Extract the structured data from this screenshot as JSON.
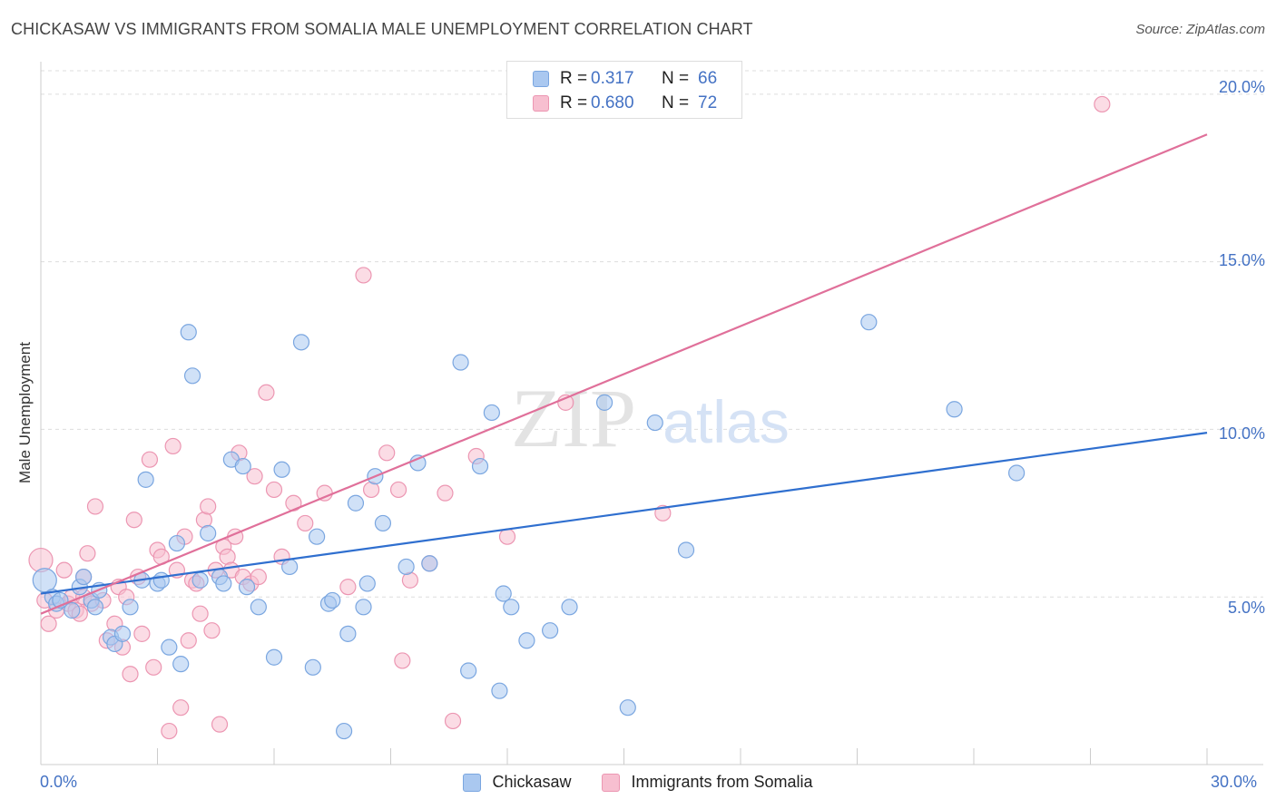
{
  "title": "CHICKASAW VS IMMIGRANTS FROM SOMALIA MALE UNEMPLOYMENT CORRELATION CHART",
  "source": "Source: ZipAtlas.com",
  "watermark": {
    "zip": "ZIP",
    "atlas": "atlas"
  },
  "legend": {
    "rows": [
      {
        "r_label": "R =",
        "r_value": "0.317",
        "n_label": "N =",
        "n_value": "66"
      },
      {
        "r_label": "R =",
        "r_value": "0.680",
        "n_label": "N =",
        "n_value": "72"
      }
    ]
  },
  "bottom_legend": [
    "Chickasaw",
    "Immigrants from Somalia"
  ],
  "y_ticks": [
    "20.0%",
    "15.0%",
    "10.0%",
    "5.0%"
  ],
  "x_ticks": [
    "0.0%",
    "30.0%"
  ],
  "colors": {
    "blue_fill": "#aac8f0",
    "blue_stroke": "#7aa6e0",
    "blue_line": "#2f6fcf",
    "pink_fill": "#f7bfd0",
    "pink_stroke": "#ec96b2",
    "pink_line": "#e0709a",
    "tick_text": "#4472c4",
    "grid": "#dddddd"
  },
  "chart_data": {
    "type": "scatter",
    "title": "CHICKASAW VS IMMIGRANTS FROM SOMALIA MALE UNEMPLOYMENT CORRELATION CHART",
    "xlabel": "",
    "ylabel": "Male Unemployment",
    "xlim": [
      0,
      30
    ],
    "ylim": [
      0,
      20.7
    ],
    "y_tick_values": [
      5,
      10,
      15,
      20
    ],
    "x_tick_values": [
      0,
      30
    ],
    "grid": "horizontal dashed",
    "legend_position": "top-center",
    "series": [
      {
        "name": "Chickasaw",
        "color": "blue",
        "r": 0.317,
        "n": 66,
        "trend": {
          "x": [
            0,
            30
          ],
          "y": [
            5.1,
            9.9
          ]
        },
        "points": [
          [
            0.1,
            5.5
          ],
          [
            0.3,
            5.0
          ],
          [
            0.4,
            4.8
          ],
          [
            0.5,
            4.9
          ],
          [
            0.8,
            4.6
          ],
          [
            1.0,
            5.3
          ],
          [
            1.1,
            5.6
          ],
          [
            1.3,
            4.9
          ],
          [
            1.4,
            4.7
          ],
          [
            1.5,
            5.2
          ],
          [
            1.8,
            3.8
          ],
          [
            1.9,
            3.6
          ],
          [
            2.1,
            3.9
          ],
          [
            2.3,
            4.7
          ],
          [
            2.6,
            5.5
          ],
          [
            2.7,
            8.5
          ],
          [
            3.0,
            5.4
          ],
          [
            3.1,
            5.5
          ],
          [
            3.3,
            3.5
          ],
          [
            3.5,
            6.6
          ],
          [
            3.6,
            3.0
          ],
          [
            3.8,
            12.9
          ],
          [
            3.9,
            11.6
          ],
          [
            4.1,
            5.5
          ],
          [
            4.3,
            6.9
          ],
          [
            4.6,
            5.6
          ],
          [
            4.7,
            5.4
          ],
          [
            4.9,
            9.1
          ],
          [
            5.2,
            8.9
          ],
          [
            5.3,
            5.3
          ],
          [
            5.6,
            4.7
          ],
          [
            6.0,
            3.2
          ],
          [
            6.2,
            8.8
          ],
          [
            6.4,
            5.9
          ],
          [
            6.7,
            12.6
          ],
          [
            7.0,
            2.9
          ],
          [
            7.1,
            6.8
          ],
          [
            7.4,
            4.8
          ],
          [
            7.5,
            4.9
          ],
          [
            7.8,
            1.0
          ],
          [
            7.9,
            3.9
          ],
          [
            8.1,
            7.8
          ],
          [
            8.3,
            4.7
          ],
          [
            8.4,
            5.4
          ],
          [
            8.6,
            8.6
          ],
          [
            8.8,
            7.2
          ],
          [
            9.4,
            5.9
          ],
          [
            9.7,
            9.0
          ],
          [
            10.0,
            6.0
          ],
          [
            10.8,
            12.0
          ],
          [
            11.0,
            2.8
          ],
          [
            11.3,
            8.9
          ],
          [
            11.6,
            10.5
          ],
          [
            11.8,
            2.2
          ],
          [
            11.9,
            5.1
          ],
          [
            12.1,
            4.7
          ],
          [
            12.5,
            3.7
          ],
          [
            13.1,
            4.0
          ],
          [
            13.6,
            4.7
          ],
          [
            14.5,
            10.8
          ],
          [
            15.1,
            1.7
          ],
          [
            15.8,
            10.2
          ],
          [
            16.6,
            6.4
          ],
          [
            21.3,
            13.2
          ],
          [
            23.5,
            10.6
          ],
          [
            25.1,
            8.7
          ]
        ]
      },
      {
        "name": "Immigrants from Somalia",
        "color": "pink",
        "r": 0.68,
        "n": 72,
        "trend": {
          "x": [
            0,
            30
          ],
          "y": [
            4.5,
            18.8
          ]
        },
        "points": [
          [
            0.0,
            6.1
          ],
          [
            0.1,
            4.9
          ],
          [
            0.2,
            4.2
          ],
          [
            0.4,
            4.6
          ],
          [
            0.6,
            5.8
          ],
          [
            0.7,
            4.8
          ],
          [
            0.8,
            5.0
          ],
          [
            0.9,
            4.6
          ],
          [
            1.0,
            4.5
          ],
          [
            1.1,
            5.6
          ],
          [
            1.1,
            5.0
          ],
          [
            1.2,
            6.3
          ],
          [
            1.3,
            4.8
          ],
          [
            1.4,
            7.7
          ],
          [
            1.6,
            4.9
          ],
          [
            1.7,
            3.7
          ],
          [
            1.9,
            4.2
          ],
          [
            2.0,
            5.3
          ],
          [
            2.1,
            3.5
          ],
          [
            2.2,
            5.0
          ],
          [
            2.3,
            2.7
          ],
          [
            2.4,
            7.3
          ],
          [
            2.5,
            5.6
          ],
          [
            2.6,
            3.9
          ],
          [
            2.8,
            9.1
          ],
          [
            2.9,
            2.9
          ],
          [
            3.0,
            6.4
          ],
          [
            3.1,
            6.2
          ],
          [
            3.3,
            1.0
          ],
          [
            3.4,
            9.5
          ],
          [
            3.5,
            5.8
          ],
          [
            3.6,
            1.7
          ],
          [
            3.7,
            6.8
          ],
          [
            3.8,
            3.7
          ],
          [
            3.9,
            5.5
          ],
          [
            4.0,
            5.4
          ],
          [
            4.1,
            4.5
          ],
          [
            4.2,
            7.3
          ],
          [
            4.3,
            7.7
          ],
          [
            4.4,
            4.0
          ],
          [
            4.5,
            5.8
          ],
          [
            4.6,
            1.2
          ],
          [
            4.7,
            6.5
          ],
          [
            4.8,
            6.2
          ],
          [
            4.9,
            5.8
          ],
          [
            5.0,
            6.8
          ],
          [
            5.1,
            9.3
          ],
          [
            5.2,
            5.6
          ],
          [
            5.4,
            5.4
          ],
          [
            5.5,
            8.6
          ],
          [
            5.6,
            5.6
          ],
          [
            5.8,
            11.1
          ],
          [
            6.0,
            8.2
          ],
          [
            6.2,
            6.2
          ],
          [
            6.5,
            7.8
          ],
          [
            6.8,
            7.2
          ],
          [
            7.3,
            8.1
          ],
          [
            7.9,
            5.3
          ],
          [
            8.3,
            14.6
          ],
          [
            8.5,
            8.2
          ],
          [
            8.9,
            9.3
          ],
          [
            9.2,
            8.2
          ],
          [
            9.3,
            3.1
          ],
          [
            9.5,
            5.5
          ],
          [
            10.0,
            6.0
          ],
          [
            10.4,
            8.1
          ],
          [
            10.6,
            1.3
          ],
          [
            11.2,
            9.2
          ],
          [
            12.0,
            6.8
          ],
          [
            13.5,
            10.8
          ],
          [
            16.0,
            7.5
          ],
          [
            27.3,
            19.7
          ]
        ]
      }
    ]
  }
}
